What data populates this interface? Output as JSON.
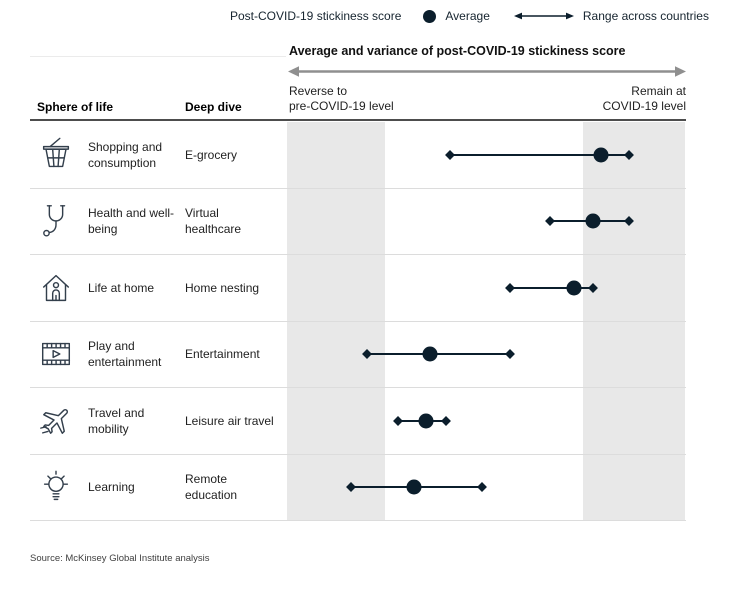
{
  "colors": {
    "marker_navy": "#0b1e2c",
    "band_gray": "#e8e8e8",
    "axis_arrow_gray": "#8f8f8f"
  },
  "legend": {
    "title": "Post-COVID-19 stickiness score",
    "average_label": "Average",
    "range_label": "Range across countries"
  },
  "chart_header": {
    "title": "Average and variance of post-COVID-19 stickiness score",
    "left_axis_line1": "Reverse to",
    "left_axis_line2": "pre-COVID-19 level",
    "right_axis_line1": "Remain at",
    "right_axis_line2": "COVID-19 level"
  },
  "table": {
    "col1_header": "Sphere of life",
    "col2_header": "Deep dive",
    "rows": [
      {
        "icon": "basket-icon",
        "sphere": "Shopping and consumption",
        "deep_dive": "E-grocery",
        "min": 0.41,
        "avg": 0.79,
        "max": 0.86
      },
      {
        "icon": "stethoscope-icon",
        "sphere": "Health and well-being",
        "deep_dive": "Virtual healthcare",
        "min": 0.66,
        "avg": 0.77,
        "max": 0.86
      },
      {
        "icon": "home-icon",
        "sphere": "Life at home",
        "deep_dive": "Home nesting",
        "min": 0.56,
        "avg": 0.72,
        "max": 0.77
      },
      {
        "icon": "film-icon",
        "sphere": "Play and entertainment",
        "deep_dive": "Entertainment",
        "min": 0.2,
        "avg": 0.36,
        "max": 0.56
      },
      {
        "icon": "plane-icon",
        "sphere": "Travel and mobility",
        "deep_dive": "Leisure air travel",
        "min": 0.28,
        "avg": 0.35,
        "max": 0.4
      },
      {
        "icon": "bulb-icon",
        "sphere": "Learning",
        "deep_dive": "Remote education",
        "min": 0.16,
        "avg": 0.32,
        "max": 0.49
      }
    ]
  },
  "source": "Source: McKinsey Global Institute analysis",
  "chart_data": {
    "type": "scatter",
    "title": "Average and variance of post-COVID-19 stickiness score",
    "x_axis": {
      "scale": "normalized 0-1 along axis (no numeric ticks shown)",
      "left_label": "Reverse to pre-COVID-19 level",
      "right_label": "Remain at COVID-19 level",
      "xlim": [
        0,
        1
      ]
    },
    "categories": [
      "E-grocery",
      "Virtual healthcare",
      "Home nesting",
      "Entertainment",
      "Leisure air travel",
      "Remote education"
    ],
    "sphere_of_life": [
      "Shopping and consumption",
      "Health and well-being",
      "Life at home",
      "Play and entertainment",
      "Travel and mobility",
      "Learning"
    ],
    "series": [
      {
        "name": "Range min (across countries)",
        "values": [
          0.41,
          0.66,
          0.56,
          0.2,
          0.28,
          0.16
        ]
      },
      {
        "name": "Average",
        "values": [
          0.79,
          0.77,
          0.72,
          0.36,
          0.35,
          0.32
        ]
      },
      {
        "name": "Range max (across countries)",
        "values": [
          0.86,
          0.86,
          0.77,
          0.56,
          0.4,
          0.49
        ]
      }
    ],
    "legend_entries": [
      "Average",
      "Range across countries"
    ],
    "shaded_bands_x": [
      [
        0,
        0.246
      ],
      [
        0.744,
        1.0
      ]
    ],
    "grid": false
  }
}
